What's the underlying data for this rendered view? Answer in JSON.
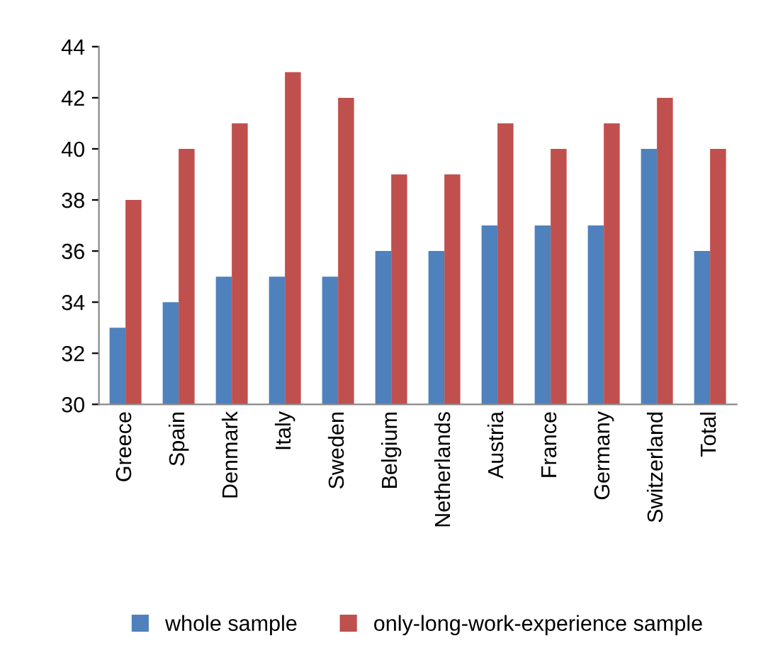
{
  "chart_data": {
    "type": "bar",
    "categories": [
      "Greece",
      "Spain",
      "Denmark",
      "Italy",
      "Sweden",
      "Belgium",
      "Netherlands",
      "Austria",
      "France",
      "Germany",
      "Switzerland",
      "Total"
    ],
    "series": [
      {
        "name": "whole sample",
        "color": "#4f81bd",
        "values": [
          33,
          34,
          35,
          35,
          35,
          36,
          36,
          37,
          37,
          37,
          40,
          36
        ]
      },
      {
        "name": "only-long-work-experience sample",
        "color": "#c0504d",
        "values": [
          38,
          40,
          41,
          43,
          42,
          39,
          39,
          41,
          40,
          41,
          42,
          40
        ]
      }
    ],
    "ylim": [
      30,
      44
    ],
    "yticks": [
      30,
      32,
      34,
      36,
      38,
      40,
      42,
      44
    ],
    "grid": false,
    "legend": "bottom"
  }
}
